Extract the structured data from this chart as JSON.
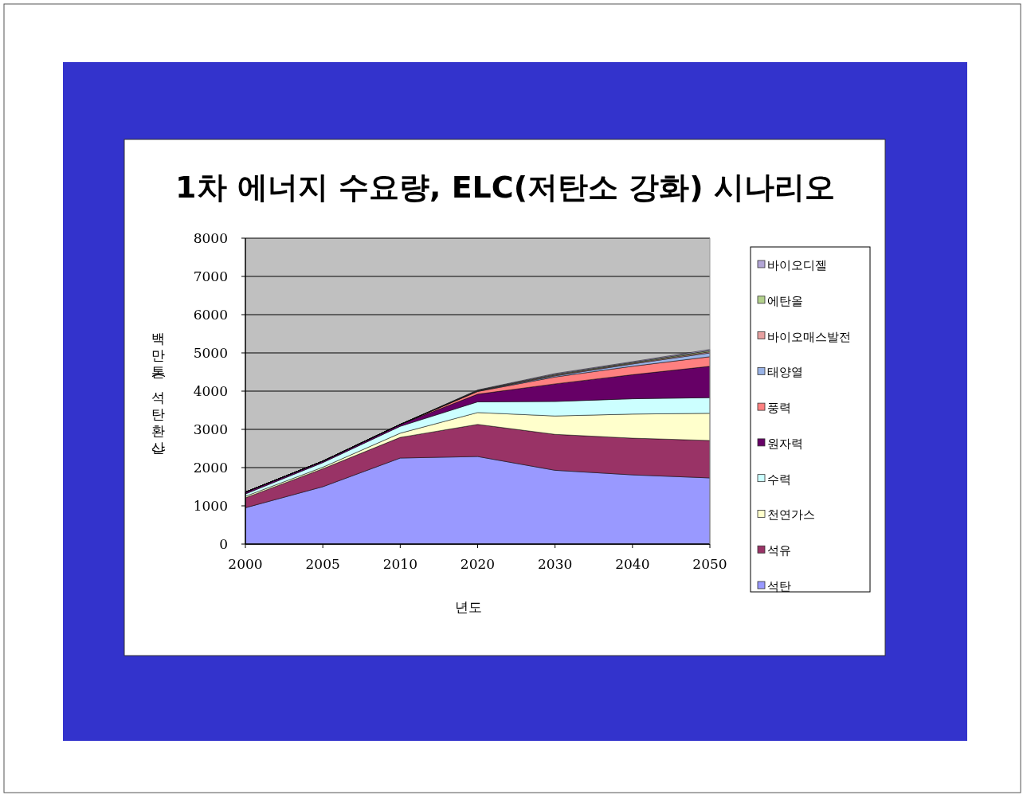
{
  "chart_data": {
    "type": "area",
    "stacked": true,
    "title": "1차 에너지 수요량, ELC(저탄소 강화) 시나리오",
    "xlabel": "년도",
    "ylabel": "백만톤(석탄환산)",
    "categories": [
      "2000",
      "2005",
      "2010",
      "2020",
      "2030",
      "2040",
      "2050"
    ],
    "ylim": [
      0,
      8000
    ],
    "yticks": [
      0,
      1000,
      2000,
      3000,
      4000,
      5000,
      6000,
      7000,
      8000
    ],
    "grid": "y",
    "legend": "right",
    "series": [
      {
        "name": "석탄",
        "color": "#9999ff",
        "values": [
          950,
          1500,
          2250,
          2290,
          1930,
          1810,
          1730
        ]
      },
      {
        "name": "석유",
        "color": "#993366",
        "values": [
          260,
          470,
          540,
          840,
          940,
          960,
          980
        ]
      },
      {
        "name": "천연가스",
        "color": "#ffffcc",
        "values": [
          40,
          40,
          110,
          310,
          480,
          630,
          710
        ]
      },
      {
        "name": "수력",
        "color": "#ccffff",
        "values": [
          60,
          120,
          180,
          280,
          380,
          400,
          410
        ]
      },
      {
        "name": "원자력",
        "color": "#660066",
        "values": [
          50,
          40,
          50,
          200,
          460,
          630,
          820
        ]
      },
      {
        "name": "풍력",
        "color": "#ff8080",
        "values": [
          0,
          0,
          0,
          70,
          180,
          220,
          250
        ]
      },
      {
        "name": "태양열",
        "color": "#99b3e6",
        "values": [
          0,
          0,
          0,
          10,
          30,
          60,
          100
        ]
      },
      {
        "name": "바이오매스발전",
        "color": "#e6a0a0",
        "values": [
          0,
          0,
          0,
          10,
          20,
          20,
          30
        ]
      },
      {
        "name": "에탄올",
        "color": "#b3d18c",
        "values": [
          0,
          0,
          0,
          10,
          20,
          20,
          30
        ]
      },
      {
        "name": "바이오디젤",
        "color": "#b3a6d6",
        "values": [
          0,
          0,
          0,
          10,
          20,
          20,
          30
        ]
      }
    ]
  }
}
